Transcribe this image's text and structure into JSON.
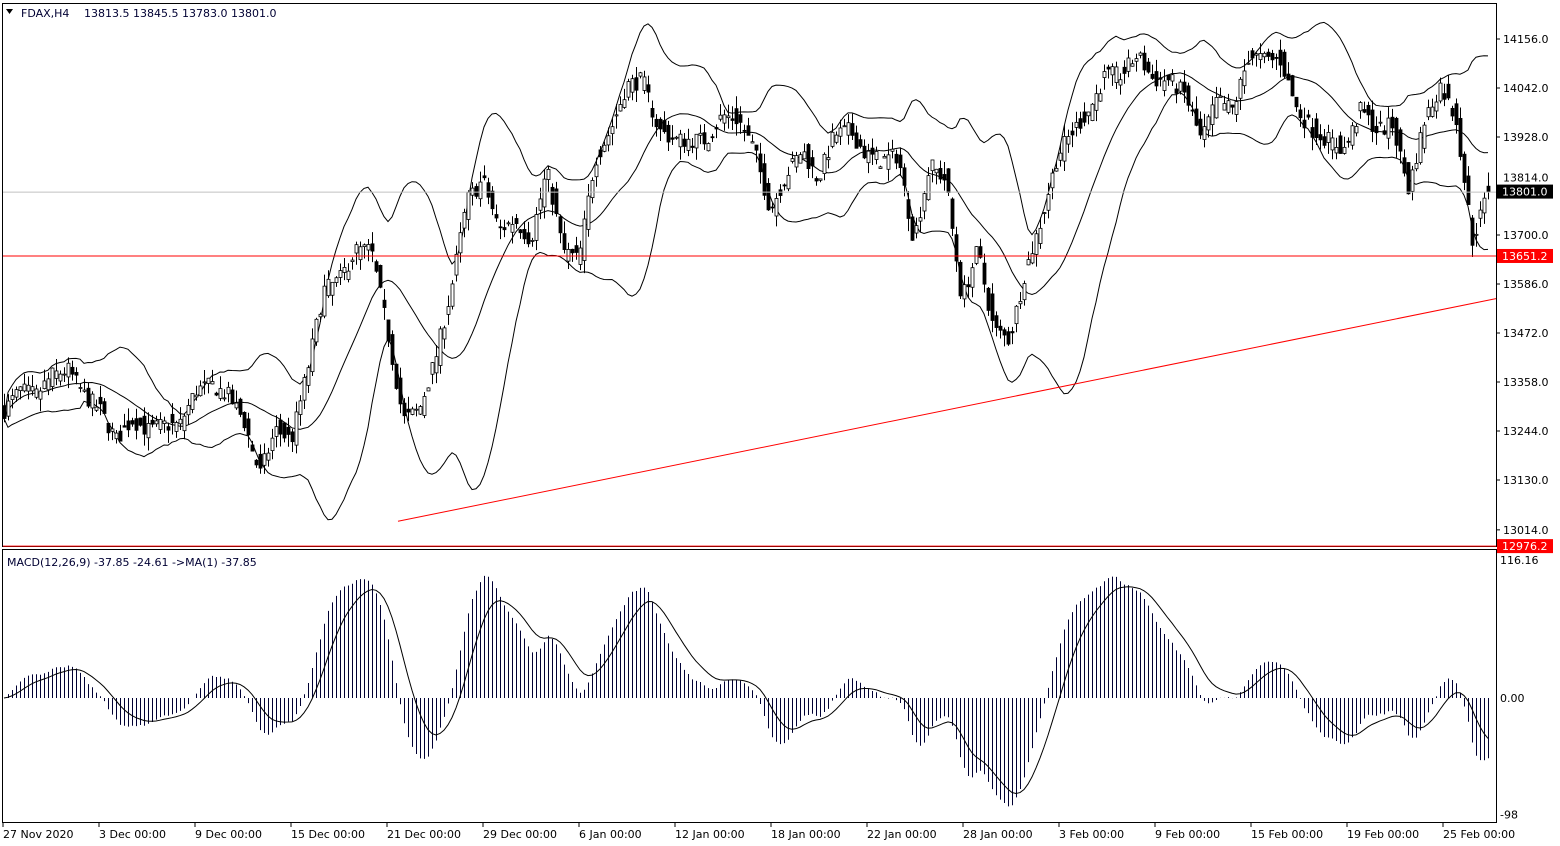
{
  "header": {
    "symbol": "FDAX,H4",
    "ohlc": "13813.5 13845.5 13783.0 13801.0",
    "menu_icon": "triangle-down-icon"
  },
  "indicator_header": {
    "label": "MACD(12,26,9) -37.85 -24.61  ->MA(1) -37.85"
  },
  "colors": {
    "background": "#ffffff",
    "candles": "#000000",
    "bands": "#000000",
    "level_lines": "#ff0000",
    "bid_line": "#c0c0c0",
    "bid_label_bg": "#000000",
    "level_label_bg": "#ff0000"
  },
  "chart_data": [
    {
      "type": "candlestick",
      "title": "FDAX,H4",
      "indicators": [
        "Bollinger Bands (20, 2)"
      ],
      "y_ticks": [
        "14156.0",
        "14042.0",
        "13928.0",
        "13814.0",
        "13700.0",
        "13586.0",
        "13472.0",
        "13358.0",
        "13244.0",
        "13130.0",
        "13014.0"
      ],
      "ylim": [
        12976.2,
        14240
      ],
      "x_ticks": [
        "27 Nov 2020",
        "3 Dec 00:00",
        "9 Dec 00:00",
        "15 Dec 00:00",
        "21 Dec 00:00",
        "29 Dec 00:00",
        "6 Jan 00:00",
        "12 Jan 00:00",
        "18 Jan 00:00",
        "22 Jan 00:00",
        "28 Jan 00:00",
        "3 Feb 00:00",
        "9 Feb 00:00",
        "15 Feb 00:00",
        "19 Feb 00:00",
        "25 Feb 00:00"
      ],
      "close": [
        13293,
        13339,
        13328,
        13374,
        13386,
        13328,
        13293,
        13223,
        13270,
        13246,
        13258,
        13258,
        13339,
        13351,
        13328,
        13270,
        13142,
        13246,
        13223,
        13386,
        13572,
        13595,
        13665,
        13665,
        13479,
        13270,
        13293,
        13409,
        13572,
        13781,
        13828,
        13712,
        13735,
        13688,
        13851,
        13665,
        13642,
        13874,
        13944,
        14049,
        14061,
        13944,
        13921,
        13921,
        13921,
        13979,
        13968,
        13898,
        13758,
        13840,
        13898,
        13828,
        13933,
        13944,
        13886,
        13874,
        13886,
        13688,
        13863,
        13828,
        13549,
        13665,
        13479,
        13456,
        13619,
        13735,
        13886,
        13944,
        13991,
        14072,
        14072,
        14119,
        14061,
        14061,
        14026,
        13921,
        14014,
        13991,
        14119,
        14107,
        14107,
        13991,
        13944,
        13921,
        13898,
        13991,
        13944,
        13956,
        13805,
        13968,
        14049,
        13968,
        13688,
        13801
      ],
      "last": {
        "open": 13813.5,
        "high": 13845.5,
        "low": 13783.0,
        "close": 13801.0
      },
      "bid_price": "13801.0",
      "horizontal_levels": [
        {
          "price": 13651.2,
          "label": "13651.2"
        },
        {
          "price": 12976.2,
          "label": "12976.2"
        }
      ],
      "trendline": {
        "from": {
          "time": "21 Dec 00:00",
          "price": 13034
        },
        "to": {
          "time": "26 Feb",
          "price": 13552
        }
      }
    },
    {
      "type": "bar",
      "title": "MACD(12,26,9)",
      "values_last": {
        "macd": -37.85,
        "signal": -24.61,
        "ma1": -37.85
      },
      "y_ticks": [
        "116.16",
        "0.00",
        "-98"
      ],
      "ylim": [
        -98,
        116.16
      ]
    }
  ]
}
